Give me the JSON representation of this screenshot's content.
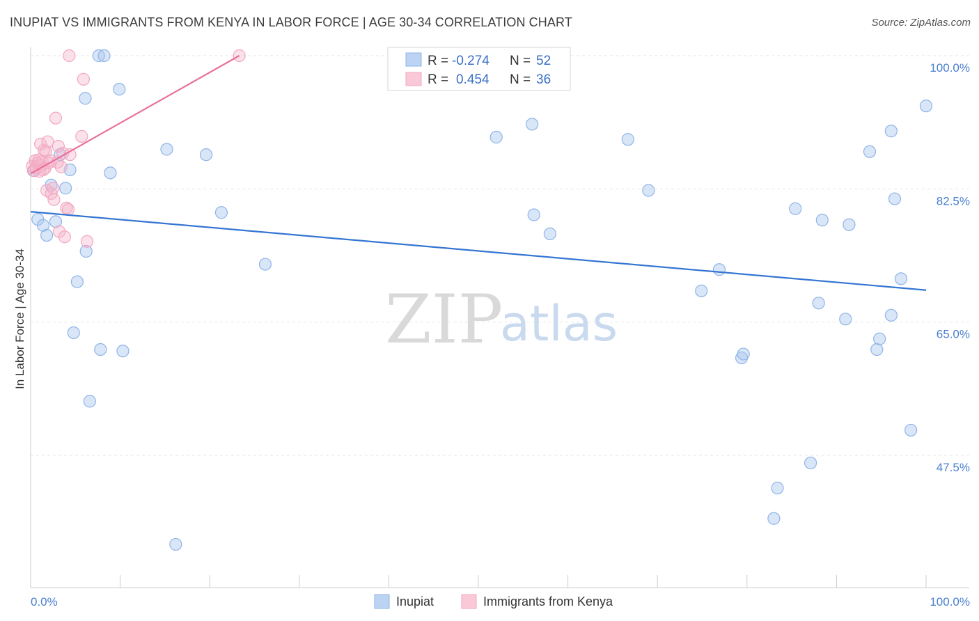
{
  "title": "INUPIAT VS IMMIGRANTS FROM KENYA IN LABOR FORCE | AGE 30-34 CORRELATION CHART",
  "source": "Source: ZipAtlas.com",
  "watermark": {
    "zip": "ZIP",
    "atlas": "atlas"
  },
  "chart_data": {
    "type": "scatter",
    "ylabel": "In Labor Force | Age 30-34",
    "xlim": [
      0,
      100
    ],
    "ylim": [
      32,
      101.5
    ],
    "x_tick_labels": [
      {
        "value": 0,
        "label": "0.0%"
      },
      {
        "value": 100,
        "label": "100.0%"
      }
    ],
    "y_ticks": [
      {
        "value": 100,
        "label": "100.0%"
      },
      {
        "value": 82.5,
        "label": "82.5%"
      },
      {
        "value": 65,
        "label": "65.0%"
      },
      {
        "value": 47.5,
        "label": "47.5%"
      }
    ],
    "grid": "horizontal dashed",
    "legend": {
      "placement": "top-center",
      "entries": [
        {
          "r_label": "R =",
          "r_value": "-0.274",
          "n_label": "N =",
          "n_value": "52"
        },
        {
          "r_label": "R =",
          "r_value": "0.454",
          "n_label": "N =",
          "n_value": "36"
        }
      ]
    },
    "series": [
      {
        "name": "Inupiat",
        "color": "#8fb4e8",
        "line_color": "#3575d3",
        "trend": {
          "x": [
            0,
            100
          ],
          "y": [
            79.5,
            69.2
          ]
        },
        "points": [
          {
            "x": 0.8,
            "y": 78.5
          },
          {
            "x": 1.4,
            "y": 77.7
          },
          {
            "x": 1.8,
            "y": 76.4
          },
          {
            "x": 2.3,
            "y": 83.0
          },
          {
            "x": 2.8,
            "y": 78.2
          },
          {
            "x": 3.3,
            "y": 87.0
          },
          {
            "x": 3.9,
            "y": 82.6
          },
          {
            "x": 4.4,
            "y": 85.0
          },
          {
            "x": 5.2,
            "y": 70.3
          },
          {
            "x": 4.8,
            "y": 63.6
          },
          {
            "x": 6.1,
            "y": 94.4
          },
          {
            "x": 6.2,
            "y": 74.3
          },
          {
            "x": 6.6,
            "y": 54.6
          },
          {
            "x": 7.6,
            "y": 100.0
          },
          {
            "x": 8.2,
            "y": 100.0
          },
          {
            "x": 7.8,
            "y": 61.4
          },
          {
            "x": 8.9,
            "y": 84.6
          },
          {
            "x": 9.9,
            "y": 95.6
          },
          {
            "x": 10.3,
            "y": 61.2
          },
          {
            "x": 15.2,
            "y": 87.7
          },
          {
            "x": 16.2,
            "y": 35.8
          },
          {
            "x": 19.6,
            "y": 87.0
          },
          {
            "x": 21.3,
            "y": 79.4
          },
          {
            "x": 26.2,
            "y": 72.6
          },
          {
            "x": 52.0,
            "y": 89.3
          },
          {
            "x": 56.0,
            "y": 91.0
          },
          {
            "x": 56.2,
            "y": 79.1
          },
          {
            "x": 58.0,
            "y": 76.6
          },
          {
            "x": 66.7,
            "y": 89.0
          },
          {
            "x": 69.0,
            "y": 82.3
          },
          {
            "x": 76.9,
            "y": 71.9
          },
          {
            "x": 74.9,
            "y": 69.1
          },
          {
            "x": 79.4,
            "y": 60.3
          },
          {
            "x": 79.6,
            "y": 60.8
          },
          {
            "x": 83.0,
            "y": 39.2
          },
          {
            "x": 83.4,
            "y": 43.2
          },
          {
            "x": 85.4,
            "y": 79.9
          },
          {
            "x": 87.1,
            "y": 46.5
          },
          {
            "x": 88.0,
            "y": 67.5
          },
          {
            "x": 88.4,
            "y": 78.4
          },
          {
            "x": 91.0,
            "y": 65.4
          },
          {
            "x": 91.4,
            "y": 77.8
          },
          {
            "x": 93.7,
            "y": 87.4
          },
          {
            "x": 94.5,
            "y": 61.4
          },
          {
            "x": 94.8,
            "y": 62.8
          },
          {
            "x": 96.1,
            "y": 90.1
          },
          {
            "x": 96.1,
            "y": 65.9
          },
          {
            "x": 96.5,
            "y": 81.2
          },
          {
            "x": 97.2,
            "y": 70.7
          },
          {
            "x": 98.3,
            "y": 50.8
          },
          {
            "x": 100.0,
            "y": 93.4
          },
          {
            "x": 0.4,
            "y": 84.9
          }
        ]
      },
      {
        "name": "Immigrants from Kenya",
        "color": "#f2a7c0",
        "line_color": "#e8709a",
        "trend": {
          "x": [
            0,
            23.3
          ],
          "y": [
            84.5,
            100.0
          ]
        },
        "points": [
          {
            "x": 0.2,
            "y": 85.5
          },
          {
            "x": 0.3,
            "y": 84.9
          },
          {
            "x": 0.5,
            "y": 86.2
          },
          {
            "x": 0.6,
            "y": 85.3
          },
          {
            "x": 0.8,
            "y": 85.9
          },
          {
            "x": 1.0,
            "y": 84.8
          },
          {
            "x": 1.1,
            "y": 88.4
          },
          {
            "x": 1.2,
            "y": 85.6
          },
          {
            "x": 1.3,
            "y": 86.1
          },
          {
            "x": 1.5,
            "y": 87.6
          },
          {
            "x": 1.6,
            "y": 85.2
          },
          {
            "x": 1.7,
            "y": 87.4
          },
          {
            "x": 1.8,
            "y": 82.3
          },
          {
            "x": 1.9,
            "y": 88.7
          },
          {
            "x": 2.2,
            "y": 86.2
          },
          {
            "x": 2.3,
            "y": 81.9
          },
          {
            "x": 2.5,
            "y": 82.6
          },
          {
            "x": 2.6,
            "y": 81.1
          },
          {
            "x": 2.8,
            "y": 91.8
          },
          {
            "x": 3.0,
            "y": 86.0
          },
          {
            "x": 3.1,
            "y": 88.1
          },
          {
            "x": 3.2,
            "y": 76.9
          },
          {
            "x": 3.4,
            "y": 85.4
          },
          {
            "x": 3.6,
            "y": 87.2
          },
          {
            "x": 3.8,
            "y": 76.2
          },
          {
            "x": 4.0,
            "y": 80.0
          },
          {
            "x": 4.2,
            "y": 79.8
          },
          {
            "x": 4.3,
            "y": 100.0
          },
          {
            "x": 4.4,
            "y": 87.0
          },
          {
            "x": 5.7,
            "y": 89.4
          },
          {
            "x": 5.9,
            "y": 96.9
          },
          {
            "x": 6.3,
            "y": 75.6
          },
          {
            "x": 2.0,
            "y": 85.9
          },
          {
            "x": 0.9,
            "y": 86.3
          },
          {
            "x": 1.4,
            "y": 85.0
          },
          {
            "x": 23.3,
            "y": 100.0
          }
        ]
      }
    ]
  }
}
